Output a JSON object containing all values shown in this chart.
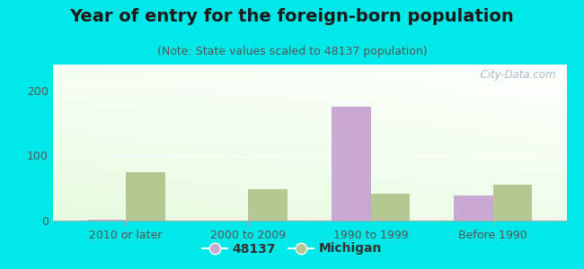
{
  "title": "Year of entry for the foreign-born population",
  "subtitle": "(Note: State values scaled to 48137 population)",
  "categories": [
    "2010 or later",
    "2000 to 2009",
    "1990 to 1999",
    "Before 1990"
  ],
  "series_48137": [
    2,
    0,
    175,
    38
  ],
  "series_michigan": [
    75,
    48,
    42,
    55
  ],
  "color_48137": "#c9a8d4",
  "color_michigan": "#b5c894",
  "background_outer": "#00e8e8",
  "ylim": [
    0,
    240
  ],
  "yticks": [
    0,
    100,
    200
  ],
  "bar_width": 0.32,
  "title_fontsize": 14,
  "subtitle_fontsize": 9,
  "tick_label_fontsize": 9,
  "legend_fontsize": 10,
  "watermark": "  City-Data.com",
  "title_color": "#1a1a1a",
  "subtitle_color": "#555555",
  "tick_color": "#555555"
}
